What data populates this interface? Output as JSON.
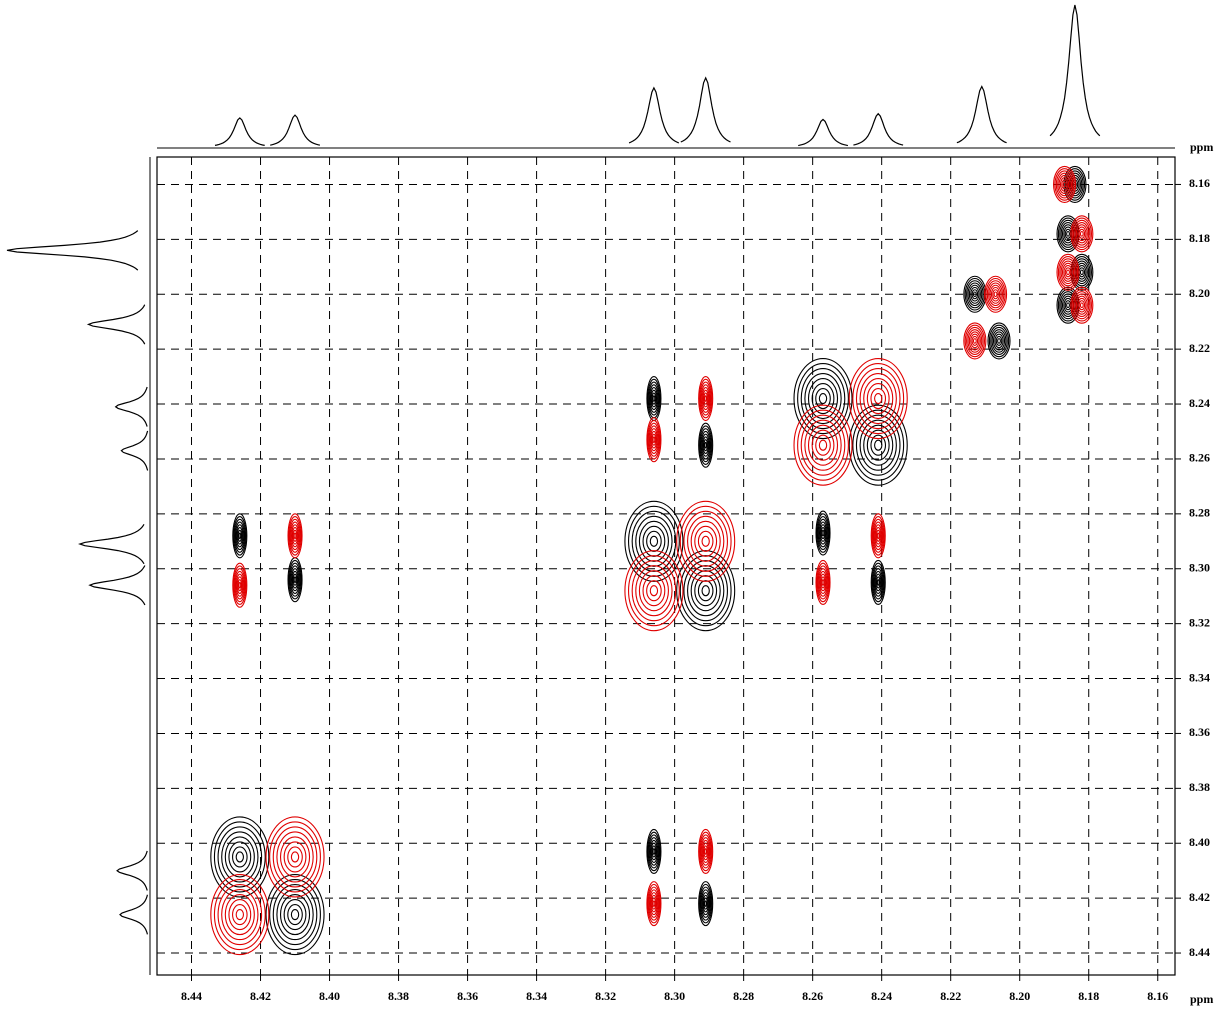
{
  "chart_data": {
    "type": "contour",
    "x_label": "ppm",
    "y_label": "ppm",
    "xlim": [
      8.45,
      8.155
    ],
    "ylim": [
      8.15,
      8.448
    ],
    "xticks": [
      8.44,
      8.42,
      {
        "value": 8.4,
        "label": "8.40"
      },
      8.38,
      8.36,
      8.34,
      8.32,
      {
        "value": 8.3,
        "label": "8.30"
      },
      8.28,
      8.26,
      8.24,
      8.22,
      {
        "value": 8.2,
        "label": "8.20"
      },
      8.18,
      8.16
    ],
    "yticks": [
      8.16,
      8.18,
      {
        "value": 8.2,
        "label": "8.20"
      },
      8.22,
      8.24,
      8.26,
      8.28,
      {
        "value": 8.3,
        "label": "8.30"
      },
      8.32,
      8.34,
      8.36,
      8.38,
      {
        "value": 8.4,
        "label": "8.40"
      },
      8.42,
      8.44
    ],
    "grid": true,
    "projection": {
      "positions": [
        8.426,
        8.41,
        8.306,
        8.291,
        8.257,
        8.241,
        8.211,
        8.184
      ],
      "heights": [
        21,
        23,
        42,
        49,
        20,
        24,
        43,
        100
      ]
    },
    "series": [
      {
        "color": "#000000",
        "x": [
          8.426,
          8.41,
          8.426,
          8.41,
          8.306,
          8.291,
          8.306,
          8.291,
          8.306,
          8.291,
          8.257,
          8.241,
          8.257,
          8.241,
          8.213,
          8.206,
          8.184,
          8.186,
          8.182,
          8.186
        ],
        "y": [
          8.405,
          8.426,
          8.288,
          8.304,
          8.29,
          8.308,
          8.403,
          8.422,
          8.238,
          8.255,
          8.238,
          8.255,
          8.287,
          8.305,
          8.2,
          8.217,
          8.16,
          8.178,
          8.192,
          8.204
        ]
      },
      {
        "color": "#e00000",
        "x": [
          8.41,
          8.426,
          8.41,
          8.426,
          8.291,
          8.306,
          8.291,
          8.306,
          8.291,
          8.306,
          8.241,
          8.257,
          8.241,
          8.257,
          8.207,
          8.213,
          8.187,
          8.182,
          8.186,
          8.182
        ],
        "y": [
          8.405,
          8.426,
          8.288,
          8.306,
          8.29,
          8.308,
          8.403,
          8.422,
          8.238,
          8.253,
          8.238,
          8.255,
          8.288,
          8.305,
          8.2,
          8.217,
          8.16,
          8.178,
          8.192,
          8.204
        ]
      }
    ]
  }
}
